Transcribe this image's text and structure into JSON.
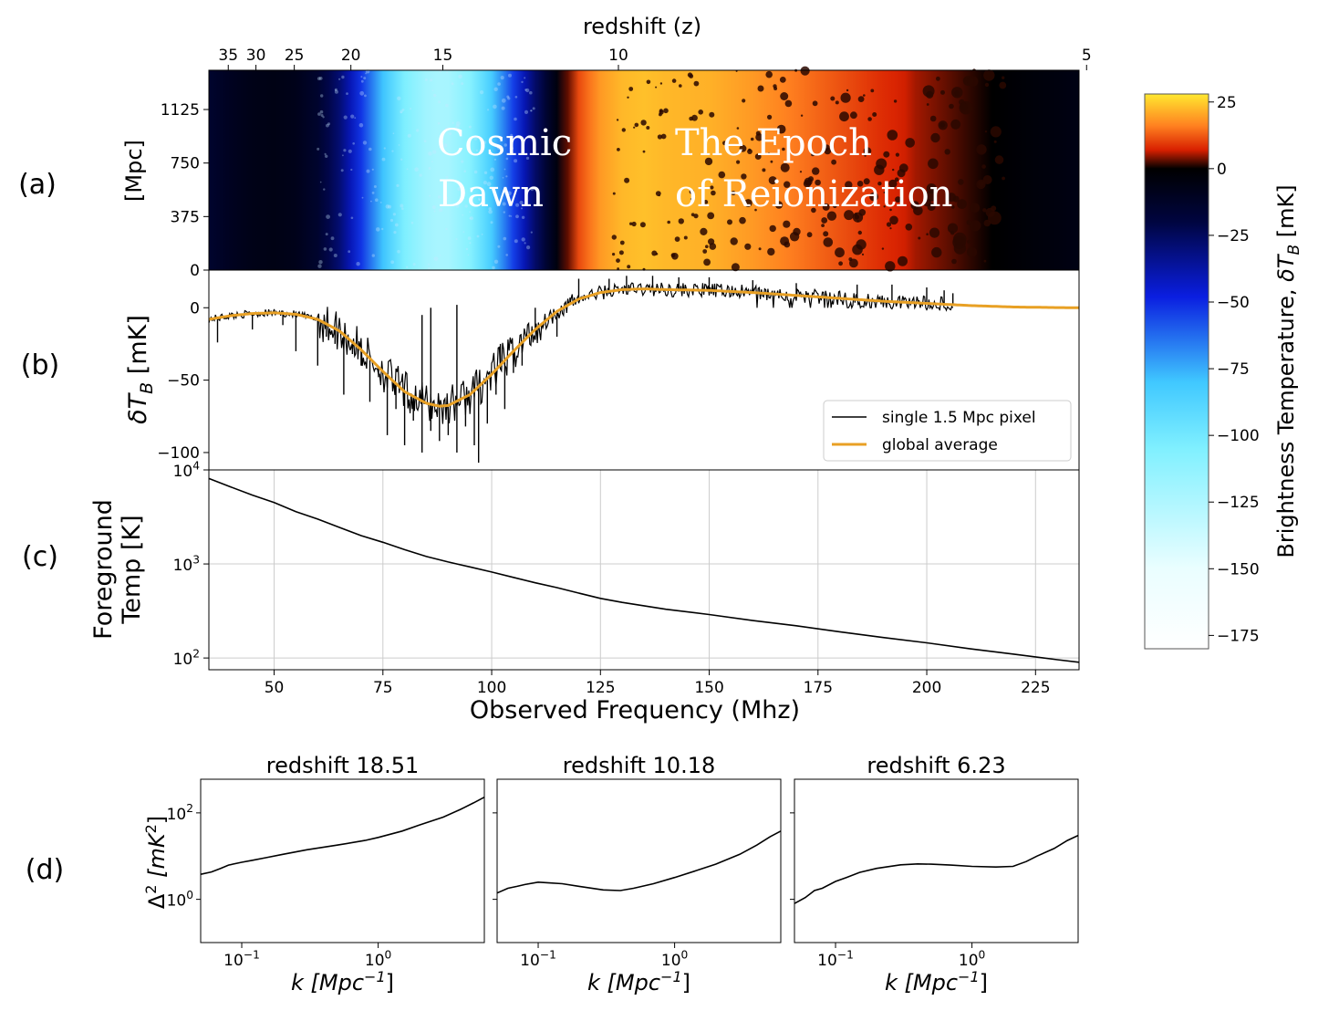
{
  "panels": {
    "a": "(a)",
    "b": "(b)",
    "c": "(c)",
    "d": "(d)"
  },
  "colors": {
    "line": "#000000",
    "global": "#e8a024",
    "grid": "#cccccc"
  },
  "chart_data": [
    {
      "id": "a",
      "type": "heatmap",
      "top_xlabel": "redshift (z)",
      "top_xticks": [
        "35",
        "30",
        "25",
        "20",
        "15",
        "10",
        "5"
      ],
      "top_xtick_z": [
        35,
        30,
        25,
        20,
        15,
        10,
        5
      ],
      "ylabel": "[Mpc]",
      "yticks": [
        "0",
        "375",
        "750",
        "1125"
      ],
      "ytick_values": [
        0,
        375,
        750,
        1125
      ],
      "ylim": [
        0,
        1400
      ],
      "annotations": [
        {
          "lines": [
            "Cosmic",
            "Dawn"
          ]
        },
        {
          "lines": [
            "The Epoch",
            "of Reionization"
          ]
        }
      ],
      "colorbar": {
        "label_prefix": "Brightness Temperature,",
        "label_symbol": "δT",
        "label_sub": "B",
        "label_unit": "[mK]",
        "ticks": [
          "25",
          "0",
          "−25",
          "−50",
          "−75",
          "−100",
          "−125",
          "−150",
          "−175"
        ],
        "tick_values": [
          25,
          0,
          -25,
          -50,
          -75,
          -100,
          -125,
          -150,
          -175
        ],
        "range": [
          -180,
          28
        ],
        "stops": [
          {
            "v": 28,
            "c": "#ffe830"
          },
          {
            "v": 16,
            "c": "#ff8020"
          },
          {
            "v": 7,
            "c": "#d82000"
          },
          {
            "v": 0,
            "c": "#000000"
          },
          {
            "v": -20,
            "c": "#000540"
          },
          {
            "v": -48,
            "c": "#0a1ee0"
          },
          {
            "v": -80,
            "c": "#40c8ff"
          },
          {
            "v": -105,
            "c": "#80f0ff"
          },
          {
            "v": -150,
            "c": "#eafeff"
          },
          {
            "v": -180,
            "c": "#ffffff"
          }
        ]
      }
    },
    {
      "id": "b",
      "type": "line",
      "ylabel_symbol": "δT",
      "ylabel_sub": "B",
      "ylabel_unit": "[mK]",
      "yticks": [
        "0",
        "−50",
        "−100"
      ],
      "ytick_values": [
        0,
        -50,
        -100
      ],
      "ylim": [
        -112,
        26
      ],
      "legend": {
        "placement": "lower-right",
        "entries": [
          "single 1.5 Mpc pixel",
          "global average"
        ]
      },
      "series": [
        {
          "name": "global average",
          "x": [
            35,
            40,
            45,
            50,
            55,
            60,
            65,
            70,
            75,
            80,
            85,
            88,
            90,
            95,
            100,
            105,
            110,
            115,
            120,
            125,
            130,
            135,
            140,
            150,
            160,
            170,
            180,
            190,
            200,
            210,
            220,
            230,
            235
          ],
          "y": [
            -8,
            -5.5,
            -4,
            -3.5,
            -4.5,
            -8,
            -16,
            -29,
            -44,
            -58,
            -66,
            -68,
            -67.5,
            -60,
            -46,
            -30,
            -15,
            -2.5,
            6,
            10.5,
            12.5,
            13,
            12.5,
            12,
            10.5,
            8.5,
            6.5,
            4.5,
            3,
            1.5,
            0.5,
            0.1,
            0
          ]
        },
        {
          "name": "single 1.5 Mpc pixel",
          "note": "noisy realisation around the global average; spikes shown below",
          "x_end": 206,
          "spikes": [
            [
              37,
              -24
            ],
            [
              45,
              -15
            ],
            [
              52,
              -12
            ],
            [
              55,
              -30
            ],
            [
              60,
              -40
            ],
            [
              62,
              -20
            ],
            [
              64,
              -25
            ],
            [
              66,
              -60
            ],
            [
              68,
              -32
            ],
            [
              70,
              -40
            ],
            [
              72,
              -65
            ],
            [
              74,
              -48
            ],
            [
              76,
              -88
            ],
            [
              78,
              -70
            ],
            [
              80,
              -95
            ],
            [
              82,
              -78
            ],
            [
              84,
              -100
            ],
            [
              86,
              -85
            ],
            [
              88,
              -92
            ],
            [
              90,
              -88
            ],
            [
              92,
              -100
            ],
            [
              94,
              -82
            ],
            [
              96,
              -95
            ],
            [
              97,
              -107
            ],
            [
              99,
              -80
            ],
            [
              101,
              -60
            ],
            [
              103,
              -70
            ],
            [
              105,
              -45
            ],
            [
              107,
              -40
            ],
            [
              84,
              -5
            ],
            [
              86,
              0
            ],
            [
              92,
              2
            ],
            [
              102,
              -25
            ],
            [
              110,
              0
            ],
            [
              115,
              -20
            ],
            [
              118,
              7
            ],
            [
              120,
              20
            ],
            [
              127,
              20
            ],
            [
              131,
              22
            ],
            [
              137,
              22
            ],
            [
              143,
              21
            ],
            [
              150,
              21
            ],
            [
              160,
              19
            ],
            [
              170,
              17
            ],
            [
              184,
              16
            ],
            [
              192,
              16
            ],
            [
              200,
              14
            ],
            [
              204,
              12
            ],
            [
              206,
              10
            ]
          ]
        }
      ]
    },
    {
      "id": "c",
      "type": "line",
      "ylabel_lines": [
        "Foreground",
        "Temp [K]"
      ],
      "ylog": true,
      "yticks": [
        {
          "base": "10",
          "exp": "4",
          "v": 10000
        },
        {
          "base": "10",
          "exp": "3",
          "v": 1000
        },
        {
          "base": "10",
          "exp": "2",
          "v": 100
        }
      ],
      "ylim": [
        75,
        10000
      ],
      "xlabel": "Observed Frequency (Mhz)",
      "xticks": [
        "50",
        "75",
        "100",
        "125",
        "150",
        "175",
        "200",
        "225"
      ],
      "xtick_values": [
        50,
        75,
        100,
        125,
        150,
        175,
        200,
        225
      ],
      "xlim": [
        35,
        235
      ],
      "grid": true,
      "series": [
        {
          "x": [
            35,
            40,
            45,
            50,
            55,
            60,
            65,
            70,
            75,
            80,
            85,
            90,
            95,
            100,
            105,
            110,
            115,
            120,
            125,
            130,
            140,
            150,
            160,
            170,
            180,
            190,
            200,
            210,
            220,
            230,
            235
          ],
          "y": [
            8100,
            6600,
            5400,
            4500,
            3600,
            3000,
            2450,
            2000,
            1700,
            1420,
            1200,
            1050,
            930,
            820,
            720,
            630,
            560,
            490,
            430,
            390,
            330,
            290,
            250,
            220,
            190,
            165,
            145,
            125,
            110,
            96,
            90
          ]
        }
      ]
    },
    {
      "id": "d1",
      "type": "line",
      "title": "redshift 18.51",
      "xlog": true,
      "ylog": true,
      "xlim": [
        0.05,
        6.0
      ],
      "ylim": [
        0.1,
        600
      ],
      "yticks": [
        {
          "base": "10",
          "exp": "2",
          "v": 100
        },
        {
          "base": "10",
          "exp": "0",
          "v": 1
        }
      ],
      "xticks": [
        {
          "base": "10",
          "exp": "−1",
          "v": 0.1
        },
        {
          "base": "10",
          "exp": "0",
          "v": 1
        }
      ],
      "ylabel_pre": "Δ",
      "ylabel_sup": "2",
      "ylabel_unit_pre": "[mK",
      "ylabel_unit_sup": "2",
      "ylabel_unit_post": "]",
      "xlabel_sym": "k",
      "xlabel_pre": "[Mpc",
      "xlabel_sup": "−1",
      "xlabel_post": "]",
      "series": [
        {
          "x": [
            0.05,
            0.06,
            0.07,
            0.08,
            0.1,
            0.12,
            0.15,
            0.2,
            0.3,
            0.5,
            0.8,
            1.0,
            1.5,
            2.0,
            3.0,
            4.0,
            5.0,
            6.0
          ],
          "y": [
            3.8,
            4.3,
            5.2,
            6.2,
            7.2,
            8.0,
            9.2,
            11.0,
            14.0,
            18.0,
            23.0,
            27.0,
            38.0,
            52.0,
            80.0,
            120.0,
            170.0,
            230.0
          ]
        }
      ]
    },
    {
      "id": "d2",
      "type": "line",
      "title": "redshift 10.18",
      "xlog": true,
      "ylog": true,
      "xlim": [
        0.05,
        6.0
      ],
      "ylim": [
        0.1,
        600
      ],
      "xticks": [
        {
          "base": "10",
          "exp": "−1",
          "v": 0.1
        },
        {
          "base": "10",
          "exp": "0",
          "v": 1
        }
      ],
      "xlabel_sym": "k",
      "xlabel_pre": "[Mpc",
      "xlabel_sup": "−1",
      "xlabel_post": "]",
      "series": [
        {
          "x": [
            0.05,
            0.06,
            0.07,
            0.08,
            0.1,
            0.12,
            0.15,
            0.2,
            0.3,
            0.4,
            0.5,
            0.7,
            1.0,
            1.5,
            2.0,
            3.0,
            4.0,
            5.0,
            6.0
          ],
          "y": [
            1.4,
            1.8,
            2.0,
            2.2,
            2.5,
            2.4,
            2.3,
            2.0,
            1.65,
            1.6,
            1.8,
            2.3,
            3.2,
            4.8,
            6.5,
            11.0,
            18.0,
            28.0,
            38.0
          ]
        }
      ]
    },
    {
      "id": "d3",
      "type": "line",
      "title": "redshift 6.23",
      "xlog": true,
      "ylog": true,
      "xlim": [
        0.05,
        6.0
      ],
      "ylim": [
        0.1,
        600
      ],
      "xticks": [
        {
          "base": "10",
          "exp": "−1",
          "v": 0.1
        },
        {
          "base": "10",
          "exp": "0",
          "v": 1
        }
      ],
      "xlabel_sym": "k",
      "xlabel_pre": "[Mpc",
      "xlabel_sup": "−1",
      "xlabel_post": "]",
      "series": [
        {
          "x": [
            0.05,
            0.06,
            0.07,
            0.08,
            0.1,
            0.12,
            0.15,
            0.2,
            0.3,
            0.4,
            0.5,
            0.7,
            1.0,
            1.5,
            2.0,
            2.5,
            3.0,
            4.0,
            5.0,
            6.0
          ],
          "y": [
            0.8,
            1.1,
            1.6,
            1.8,
            2.6,
            3.2,
            4.2,
            5.2,
            6.3,
            6.6,
            6.5,
            6.2,
            5.8,
            5.6,
            5.8,
            7.5,
            10.0,
            15.0,
            23.0,
            30.0
          ]
        }
      ]
    }
  ]
}
